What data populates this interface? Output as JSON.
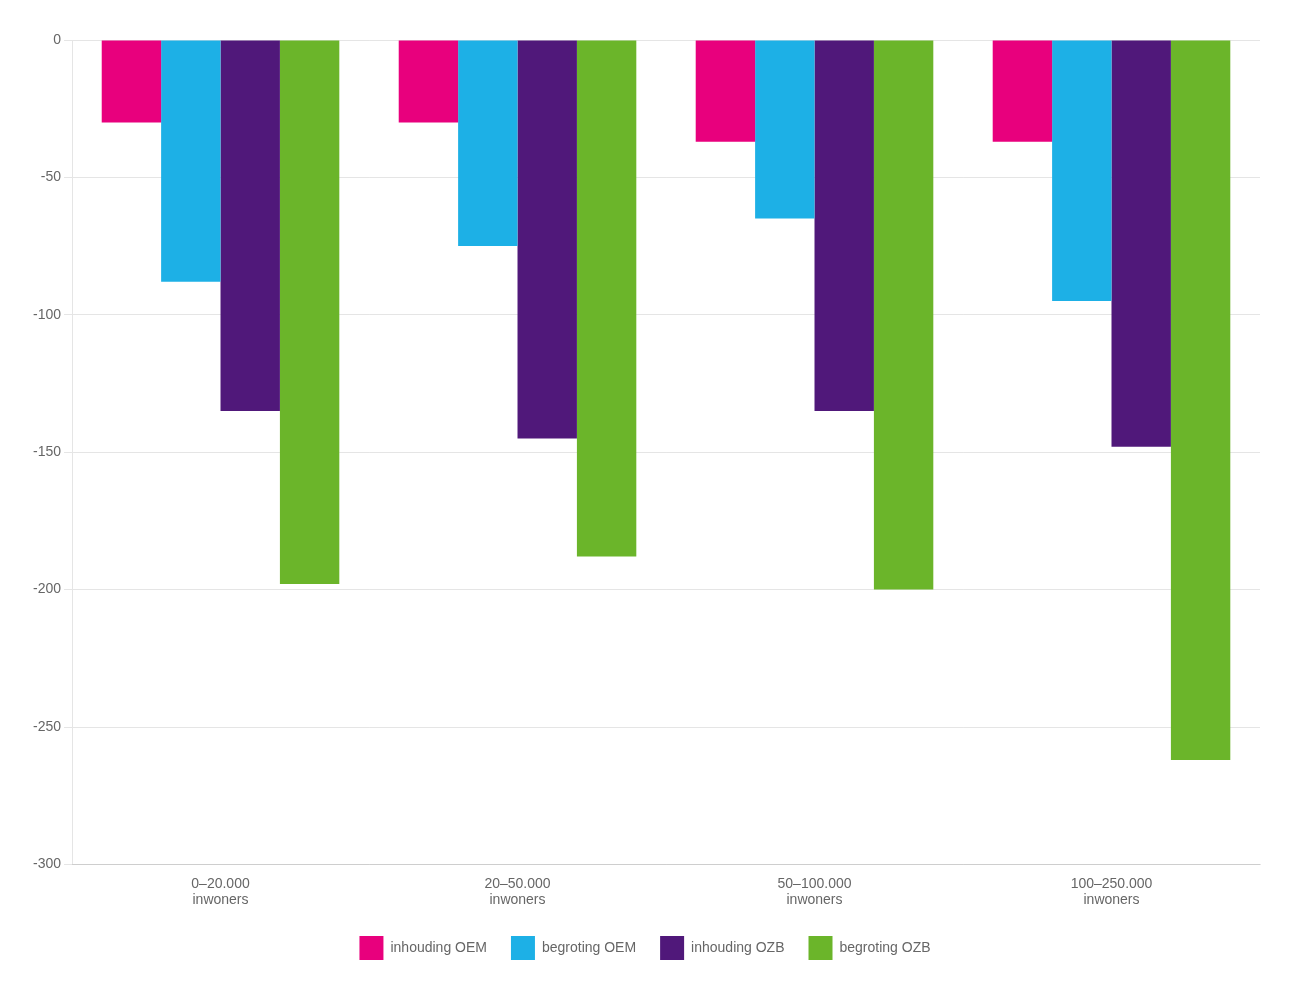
{
  "chart_data": {
    "type": "bar",
    "categories": [
      "0–20.000\ninwoners",
      "20–50.000\ninwoners",
      "50–100.000\ninwoners",
      "100–250.000\ninwoners"
    ],
    "series": [
      {
        "name": "inhouding OEM",
        "color": "#E8007D",
        "values": [
          -30,
          -30,
          -37,
          -37
        ]
      },
      {
        "name": "begroting OEM",
        "color": "#1DB0E6",
        "values": [
          -88,
          -75,
          -65,
          -95
        ]
      },
      {
        "name": "inhouding OZB",
        "color": "#50187A",
        "values": [
          -135,
          -145,
          -135,
          -148
        ]
      },
      {
        "name": "begroting OZB",
        "color": "#6BB52A",
        "values": [
          -198,
          -188,
          -200,
          -262
        ]
      }
    ],
    "ylim": [
      -300,
      0
    ],
    "yticks": [
      0,
      -50,
      -100,
      -150,
      -200,
      -250,
      -300
    ],
    "grid": true,
    "legend": "bottom"
  }
}
